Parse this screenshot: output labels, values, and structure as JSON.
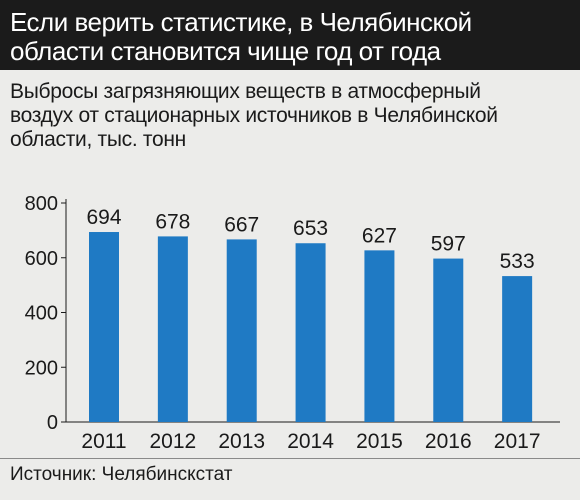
{
  "header": {
    "title_lines": [
      "Если верить статистике, в Челябинской",
      "области становится чище год от года"
    ]
  },
  "subtitle_lines": [
    "Выбросы загрязняющих веществ в атмосферный",
    "воздух от стационарных источников в Челябинской",
    "области, тыс. тонн"
  ],
  "source": "Источник: Челябинскстат",
  "colors": {
    "bar": "#1f7ac4",
    "header_bg": "#1b1b1b",
    "background": "#ececea"
  },
  "chart_data": {
    "type": "bar",
    "categories": [
      "2011",
      "2012",
      "2013",
      "2014",
      "2015",
      "2016",
      "2017"
    ],
    "values": [
      694,
      678,
      667,
      653,
      627,
      597,
      533
    ],
    "ylim": [
      0,
      800
    ],
    "yticks": [
      "0",
      "200",
      "400",
      "600",
      "800"
    ],
    "grid": false,
    "data_labels": true
  }
}
